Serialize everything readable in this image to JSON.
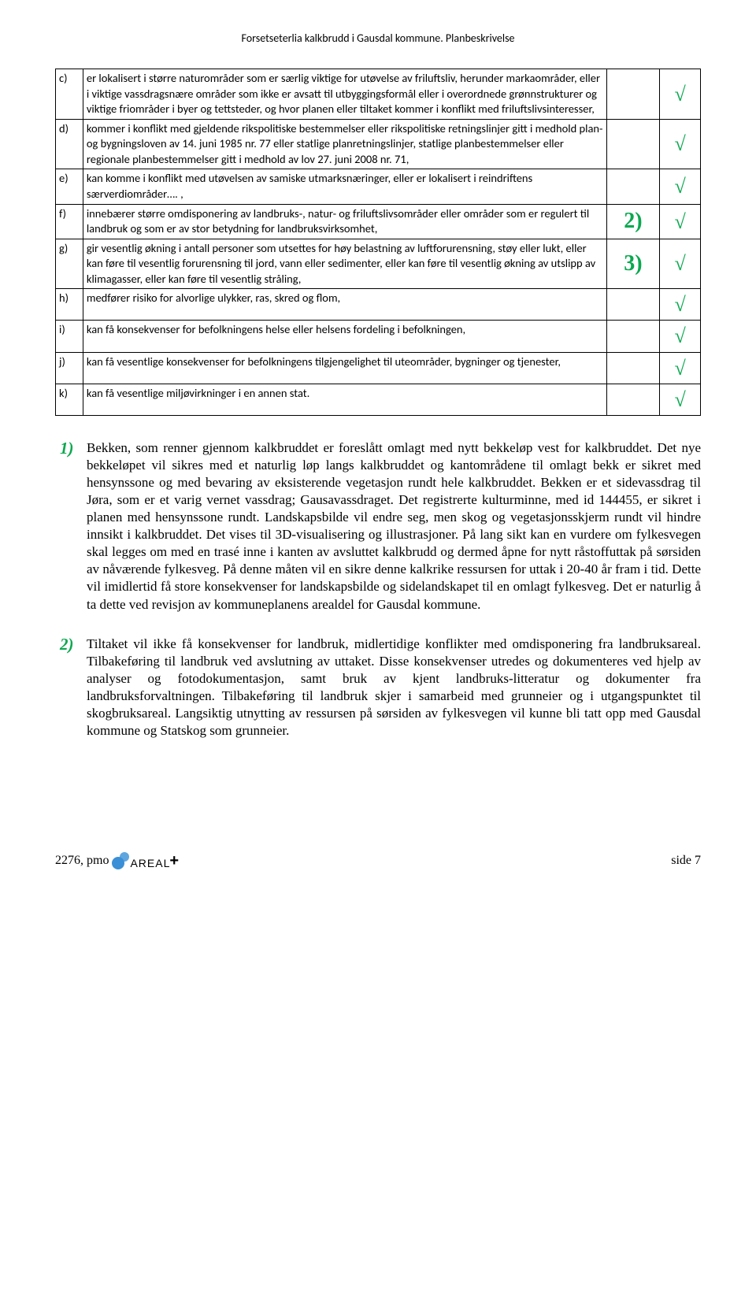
{
  "header": "Forsetseterlia kalkbrudd i Gausdal kommune.  Planbeskrivelse",
  "checkmark": "√",
  "rows": [
    {
      "letter": "c)",
      "desc": "er lokalisert i større naturområder som er særlig viktige for utøvelse av friluftsliv, herunder markaområder, eller i viktige vassdragsnære områder som ikke er avsatt til utbyggingsformål eller i overordnede grønnstrukturer og viktige friområder i byer og tettsteder, og hvor planen eller tiltaket kommer i konflikt med friluftslivsinteresser,",
      "note": "",
      "check": "√"
    },
    {
      "letter": "d)",
      "desc": "kommer i konflikt med gjeldende rikspolitiske bestemmelser eller rikspolitiske retningslinjer gitt i medhold plan- og bygningsloven av 14. juni 1985 nr. 77 eller statlige planretningslinjer, statlige planbestemmelser eller regionale planbestemmelser gitt i medhold av lov 27. juni 2008 nr. 71,",
      "note": "",
      "check": "√"
    },
    {
      "letter": "e)",
      "desc": "kan komme i konflikt med utøvelsen av samiske utmarksnæringer, eller er lokalisert i reindriftens særverdiområder…. ,",
      "note": "",
      "check": "√"
    },
    {
      "letter": "f)",
      "desc": "innebærer større omdisponering av landbruks-, natur- og friluftslivsområder eller områder som er regulert til landbruk og som er av stor betydning for landbruksvirksomhet,",
      "note": "2)",
      "check": "√"
    },
    {
      "letter": "g)",
      "desc": "gir vesentlig økning i antall personer som utsettes for høy belastning av luftforurensning, støy eller lukt, eller kan føre til vesentlig forurensning til jord, vann eller sedimenter, eller kan føre til vesentlig økning av utslipp av klimagasser, eller kan føre til vesentlig stråling,",
      "note": "3)",
      "check": "√"
    },
    {
      "letter": "h)",
      "desc": "medfører risiko for alvorlige ulykker, ras, skred og flom,",
      "note": "",
      "check": "√"
    },
    {
      "letter": "i)",
      "desc": "kan få konsekvenser for befolkningens helse eller helsens fordeling i befolkningen,",
      "note": "",
      "check": "√"
    },
    {
      "letter": "j)",
      "desc": "kan få vesentlige konsekvenser for befolkningens tilgjengelighet til uteområder, bygninger og tjenester,",
      "note": "",
      "check": "√"
    },
    {
      "letter": "k)",
      "desc": "kan få vesentlige miljøvirkninger i en annen stat.",
      "note": "",
      "check": "√"
    }
  ],
  "para1_num": "1)",
  "para1": "Bekken, som renner gjennom kalkbruddet er foreslått omlagt med nytt bekkeløp vest for kalkbruddet. Det nye bekkeløpet vil sikres med et naturlig løp langs kalkbruddet og kantområdene til omlagt bekk er sikret med hensynssone og med bevaring av eksisterende vegetasjon rundt hele kalkbruddet. Bekken er et sidevassdrag til Jøra, som er et varig vernet vassdrag; Gausavassdraget.  Det registrerte kulturminne, med id 144455, er sikret i planen med hensynssone rundt. Landskapsbilde vil endre seg, men skog og vegetasjonsskjerm rundt vil hindre innsikt i kalkbruddet. Det vises til 3D-visualisering og illustrasjoner. På lang sikt kan en vurdere om fylkesvegen skal legges om med en trasé inne i kanten av avsluttet kalkbrudd og dermed åpne for nytt råstoffuttak på sørsiden av nåværende fylkesveg. På denne måten vil en sikre denne kalkrike ressursen for uttak i 20-40 år fram i tid. Dette vil imidlertid få store konsekvenser for landskapsbilde og sidelandskapet til en omlagt fylkesveg. Det er naturlig å ta dette ved revisjon av kommuneplanens arealdel for Gausdal kommune.",
  "para2_num": "2)",
  "para2": "Tiltaket vil ikke få konsekvenser for landbruk, midlertidige konflikter med omdisponering fra landbruksareal. Tilbakeføring til landbruk ved avslutning av uttaket.  Disse konsekvenser utredes og dokumenteres ved hjelp av analyser og fotodokumentasjon, samt bruk av kjent landbruks-litteratur og dokumenter fra landbruksforvaltningen. Tilbakeføring til landbruk skjer i samarbeid med grunneier og i utgangspunktet til skogbruksareal.  Langsiktig utnytting av ressursen på sørsiden av fylkesvegen vil kunne bli tatt opp med Gausdal kommune og Statskog som grunneier.",
  "footer_left_text": "2276, pmo",
  "footer_logo_text": "AREAL",
  "footer_logo_plus": "+",
  "footer_right": "side 7"
}
